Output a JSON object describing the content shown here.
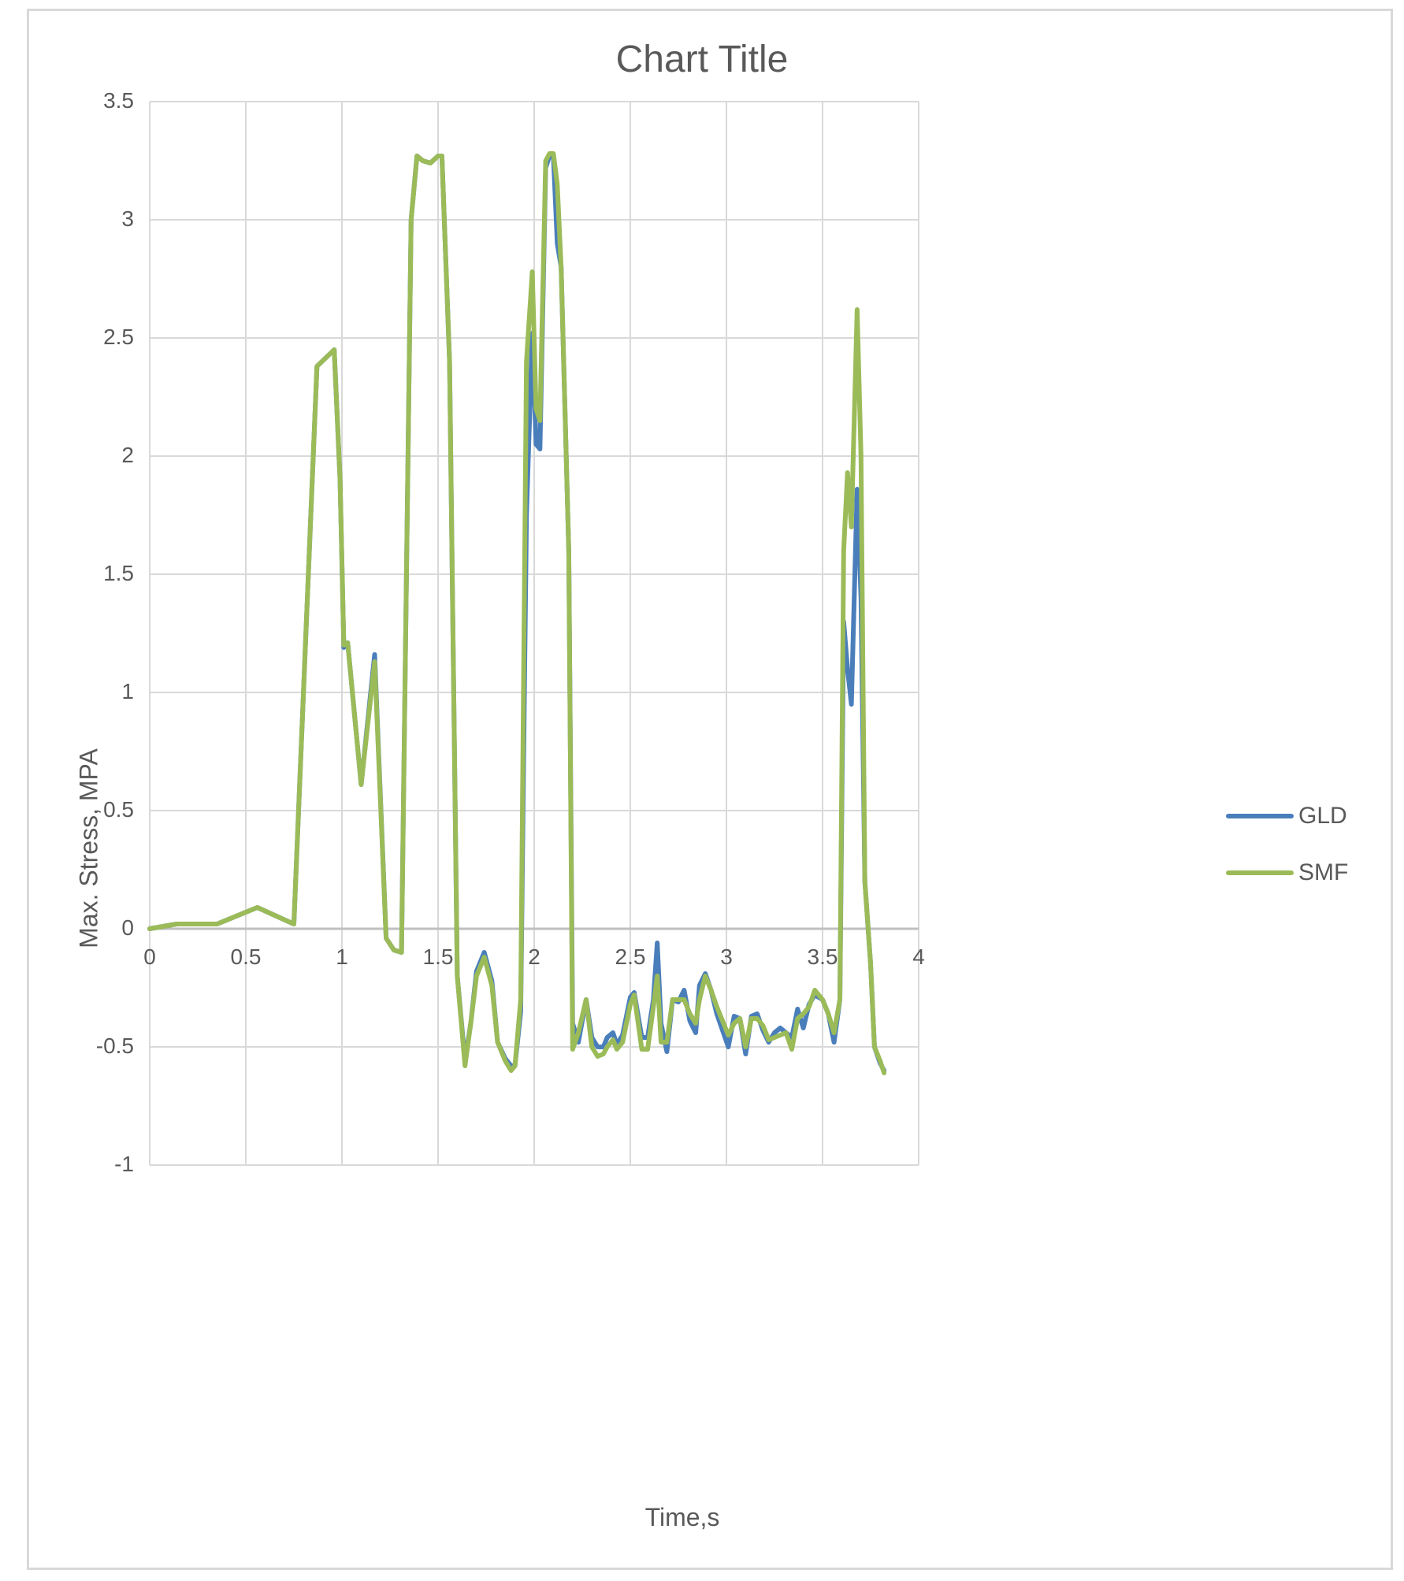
{
  "chart_data": {
    "type": "line",
    "title": "Chart Title",
    "xlabel": "Time,s",
    "ylabel": "Max. Stress, MPA",
    "xlim": [
      0,
      4
    ],
    "ylim": [
      -1,
      3.5
    ],
    "xticks": [
      "0",
      "0.5",
      "1",
      "1.5",
      "2",
      "2.5",
      "3",
      "3.5",
      "4"
    ],
    "yticks": [
      "3.5",
      "3",
      "2.5",
      "2",
      "1.5",
      "1",
      "0.5",
      "0",
      "-0.5",
      "-1"
    ],
    "grid": true,
    "legend_position": "right",
    "series": [
      {
        "name": "GLD",
        "color": "#4a7ebb",
        "x": [
          0,
          0.14,
          0.35,
          0.56,
          0.75,
          0.87,
          0.96,
          0.99,
          1.01,
          1.03,
          1.1,
          1.17,
          1.23,
          1.27,
          1.31,
          1.36,
          1.39,
          1.42,
          1.46,
          1.5,
          1.52,
          1.56,
          1.6,
          1.64,
          1.67,
          1.7,
          1.74,
          1.78,
          1.81,
          1.85,
          1.88,
          1.9,
          1.93,
          1.96,
          1.99,
          2.01,
          2.03,
          2.06,
          2.08,
          2.1,
          2.12,
          2.14,
          2.18,
          2.2,
          2.23,
          2.27,
          2.3,
          2.33,
          2.36,
          2.38,
          2.41,
          2.43,
          2.46,
          2.5,
          2.52,
          2.56,
          2.59,
          2.62,
          2.64,
          2.66,
          2.69,
          2.72,
          2.75,
          2.78,
          2.81,
          2.84,
          2.86,
          2.89,
          2.92,
          2.95,
          3.01,
          3.04,
          3.07,
          3.1,
          3.13,
          3.16,
          3.19,
          3.22,
          3.25,
          3.28,
          3.31,
          3.34,
          3.37,
          3.4,
          3.43,
          3.46,
          3.5,
          3.53,
          3.56,
          3.59,
          3.61,
          3.63,
          3.65,
          3.68,
          3.7,
          3.72,
          3.75,
          3.77,
          3.8,
          3.82
        ],
        "y": [
          0,
          0.02,
          0.02,
          0.09,
          0.02,
          2.38,
          2.45,
          1.9,
          1.19,
          1.21,
          0.61,
          1.16,
          -0.04,
          -0.09,
          -0.1,
          3.0,
          3.27,
          3.25,
          3.24,
          3.27,
          3.27,
          2.4,
          -0.2,
          -0.56,
          -0.4,
          -0.18,
          -0.1,
          -0.22,
          -0.48,
          -0.55,
          -0.58,
          -0.58,
          -0.35,
          1.75,
          2.52,
          2.05,
          2.03,
          3.22,
          3.27,
          3.27,
          2.9,
          2.8,
          1.6,
          -0.4,
          -0.48,
          -0.3,
          -0.46,
          -0.5,
          -0.5,
          -0.46,
          -0.44,
          -0.49,
          -0.45,
          -0.29,
          -0.27,
          -0.46,
          -0.46,
          -0.3,
          -0.06,
          -0.4,
          -0.52,
          -0.3,
          -0.31,
          -0.26,
          -0.39,
          -0.44,
          -0.24,
          -0.19,
          -0.26,
          -0.36,
          -0.5,
          -0.37,
          -0.38,
          -0.53,
          -0.37,
          -0.36,
          -0.43,
          -0.48,
          -0.44,
          -0.42,
          -0.44,
          -0.46,
          -0.34,
          -0.42,
          -0.32,
          -0.28,
          -0.3,
          -0.36,
          -0.48,
          -0.3,
          1.3,
          1.1,
          0.95,
          1.86,
          1.4,
          0.2,
          -0.15,
          -0.5,
          -0.57,
          -0.6
        ]
      },
      {
        "name": "SMF",
        "color": "#9bbb59",
        "x": [
          0,
          0.14,
          0.35,
          0.56,
          0.75,
          0.87,
          0.96,
          0.99,
          1.01,
          1.03,
          1.1,
          1.17,
          1.23,
          1.27,
          1.31,
          1.36,
          1.39,
          1.42,
          1.46,
          1.5,
          1.52,
          1.56,
          1.6,
          1.64,
          1.67,
          1.7,
          1.74,
          1.78,
          1.81,
          1.85,
          1.88,
          1.9,
          1.93,
          1.96,
          1.99,
          2.01,
          2.03,
          2.06,
          2.08,
          2.1,
          2.12,
          2.14,
          2.18,
          2.2,
          2.23,
          2.27,
          2.3,
          2.33,
          2.36,
          2.38,
          2.41,
          2.43,
          2.46,
          2.5,
          2.52,
          2.56,
          2.59,
          2.62,
          2.64,
          2.66,
          2.69,
          2.72,
          2.75,
          2.78,
          2.81,
          2.84,
          2.86,
          2.89,
          2.92,
          2.95,
          3.01,
          3.04,
          3.07,
          3.1,
          3.13,
          3.16,
          3.19,
          3.22,
          3.25,
          3.28,
          3.31,
          3.34,
          3.37,
          3.4,
          3.43,
          3.46,
          3.5,
          3.53,
          3.56,
          3.59,
          3.61,
          3.63,
          3.65,
          3.68,
          3.7,
          3.72,
          3.75,
          3.77,
          3.8,
          3.82
        ],
        "y": [
          0,
          0.02,
          0.02,
          0.09,
          0.02,
          2.38,
          2.45,
          1.9,
          1.2,
          1.21,
          0.61,
          1.13,
          -0.04,
          -0.09,
          -0.1,
          3.0,
          3.27,
          3.25,
          3.24,
          3.27,
          3.27,
          2.4,
          -0.2,
          -0.58,
          -0.4,
          -0.2,
          -0.12,
          -0.24,
          -0.48,
          -0.56,
          -0.6,
          -0.58,
          -0.3,
          2.4,
          2.78,
          2.2,
          2.15,
          3.25,
          3.28,
          3.28,
          3.15,
          2.8,
          1.6,
          -0.51,
          -0.44,
          -0.3,
          -0.5,
          -0.54,
          -0.53,
          -0.5,
          -0.47,
          -0.51,
          -0.48,
          -0.32,
          -0.28,
          -0.51,
          -0.51,
          -0.33,
          -0.2,
          -0.48,
          -0.48,
          -0.3,
          -0.3,
          -0.3,
          -0.36,
          -0.4,
          -0.3,
          -0.2,
          -0.26,
          -0.33,
          -0.45,
          -0.4,
          -0.38,
          -0.5,
          -0.38,
          -0.38,
          -0.41,
          -0.47,
          -0.46,
          -0.45,
          -0.44,
          -0.51,
          -0.38,
          -0.36,
          -0.33,
          -0.26,
          -0.3,
          -0.36,
          -0.44,
          -0.3,
          1.6,
          1.93,
          1.7,
          2.62,
          2.0,
          0.2,
          -0.15,
          -0.5,
          -0.56,
          -0.61
        ]
      }
    ]
  }
}
